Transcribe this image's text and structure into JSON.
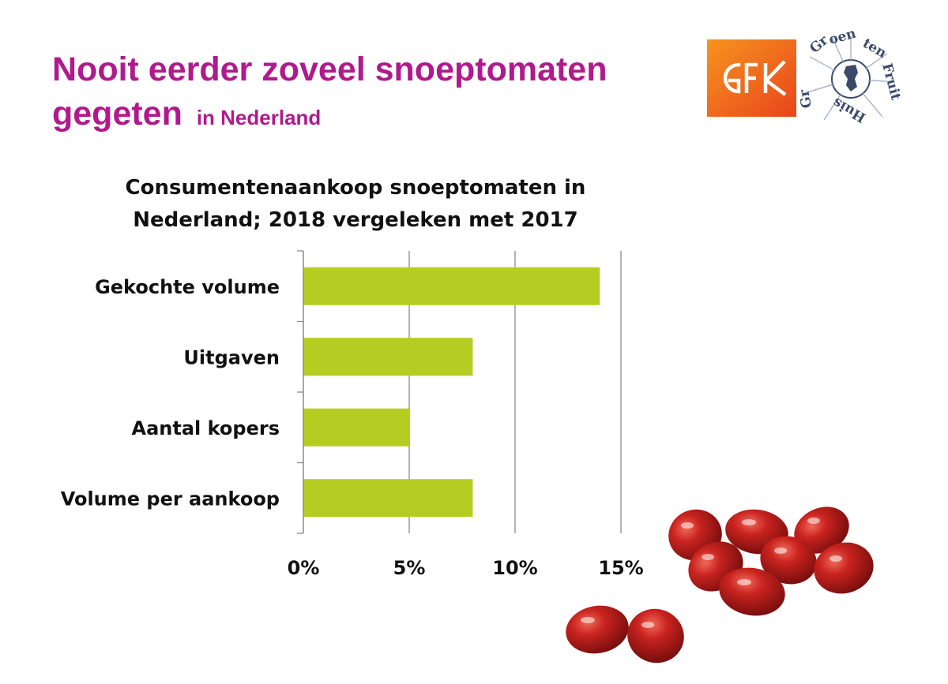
{
  "headline": {
    "line1": "Nooit eerder zoveel snoeptomaten",
    "line2": "gegeten",
    "suffix": "in Nederland"
  },
  "logos": [
    {
      "name": "gfk-logo",
      "text": "GFK",
      "color": "#f15a24"
    },
    {
      "name": "groenten-fruit-huis-logo",
      "text": "Groenten Fruit Huis",
      "color": "#3b4a6b"
    }
  ],
  "colors": {
    "headline": "#b01a8c",
    "bar": "#b5cd22",
    "axis": "#8c8c8c",
    "tomato": "#b3191e"
  },
  "chart_data": {
    "type": "bar",
    "orientation": "horizontal",
    "title_line1": "Consumentenaankoop snoeptomaten in",
    "title_line2": "Nederland; 2018 vergeleken met 2017",
    "categories": [
      "Gekochte volume",
      "Uitgaven",
      "Aantal kopers",
      "Volume per aankoop"
    ],
    "values": [
      14,
      8,
      5,
      8
    ],
    "unit": "%",
    "xlim": [
      0,
      15
    ],
    "xticks": [
      0,
      5,
      10,
      15
    ],
    "xtick_labels": [
      "0%",
      "5%",
      "10%",
      "15%"
    ],
    "grid": "vertical",
    "legend": "none"
  }
}
